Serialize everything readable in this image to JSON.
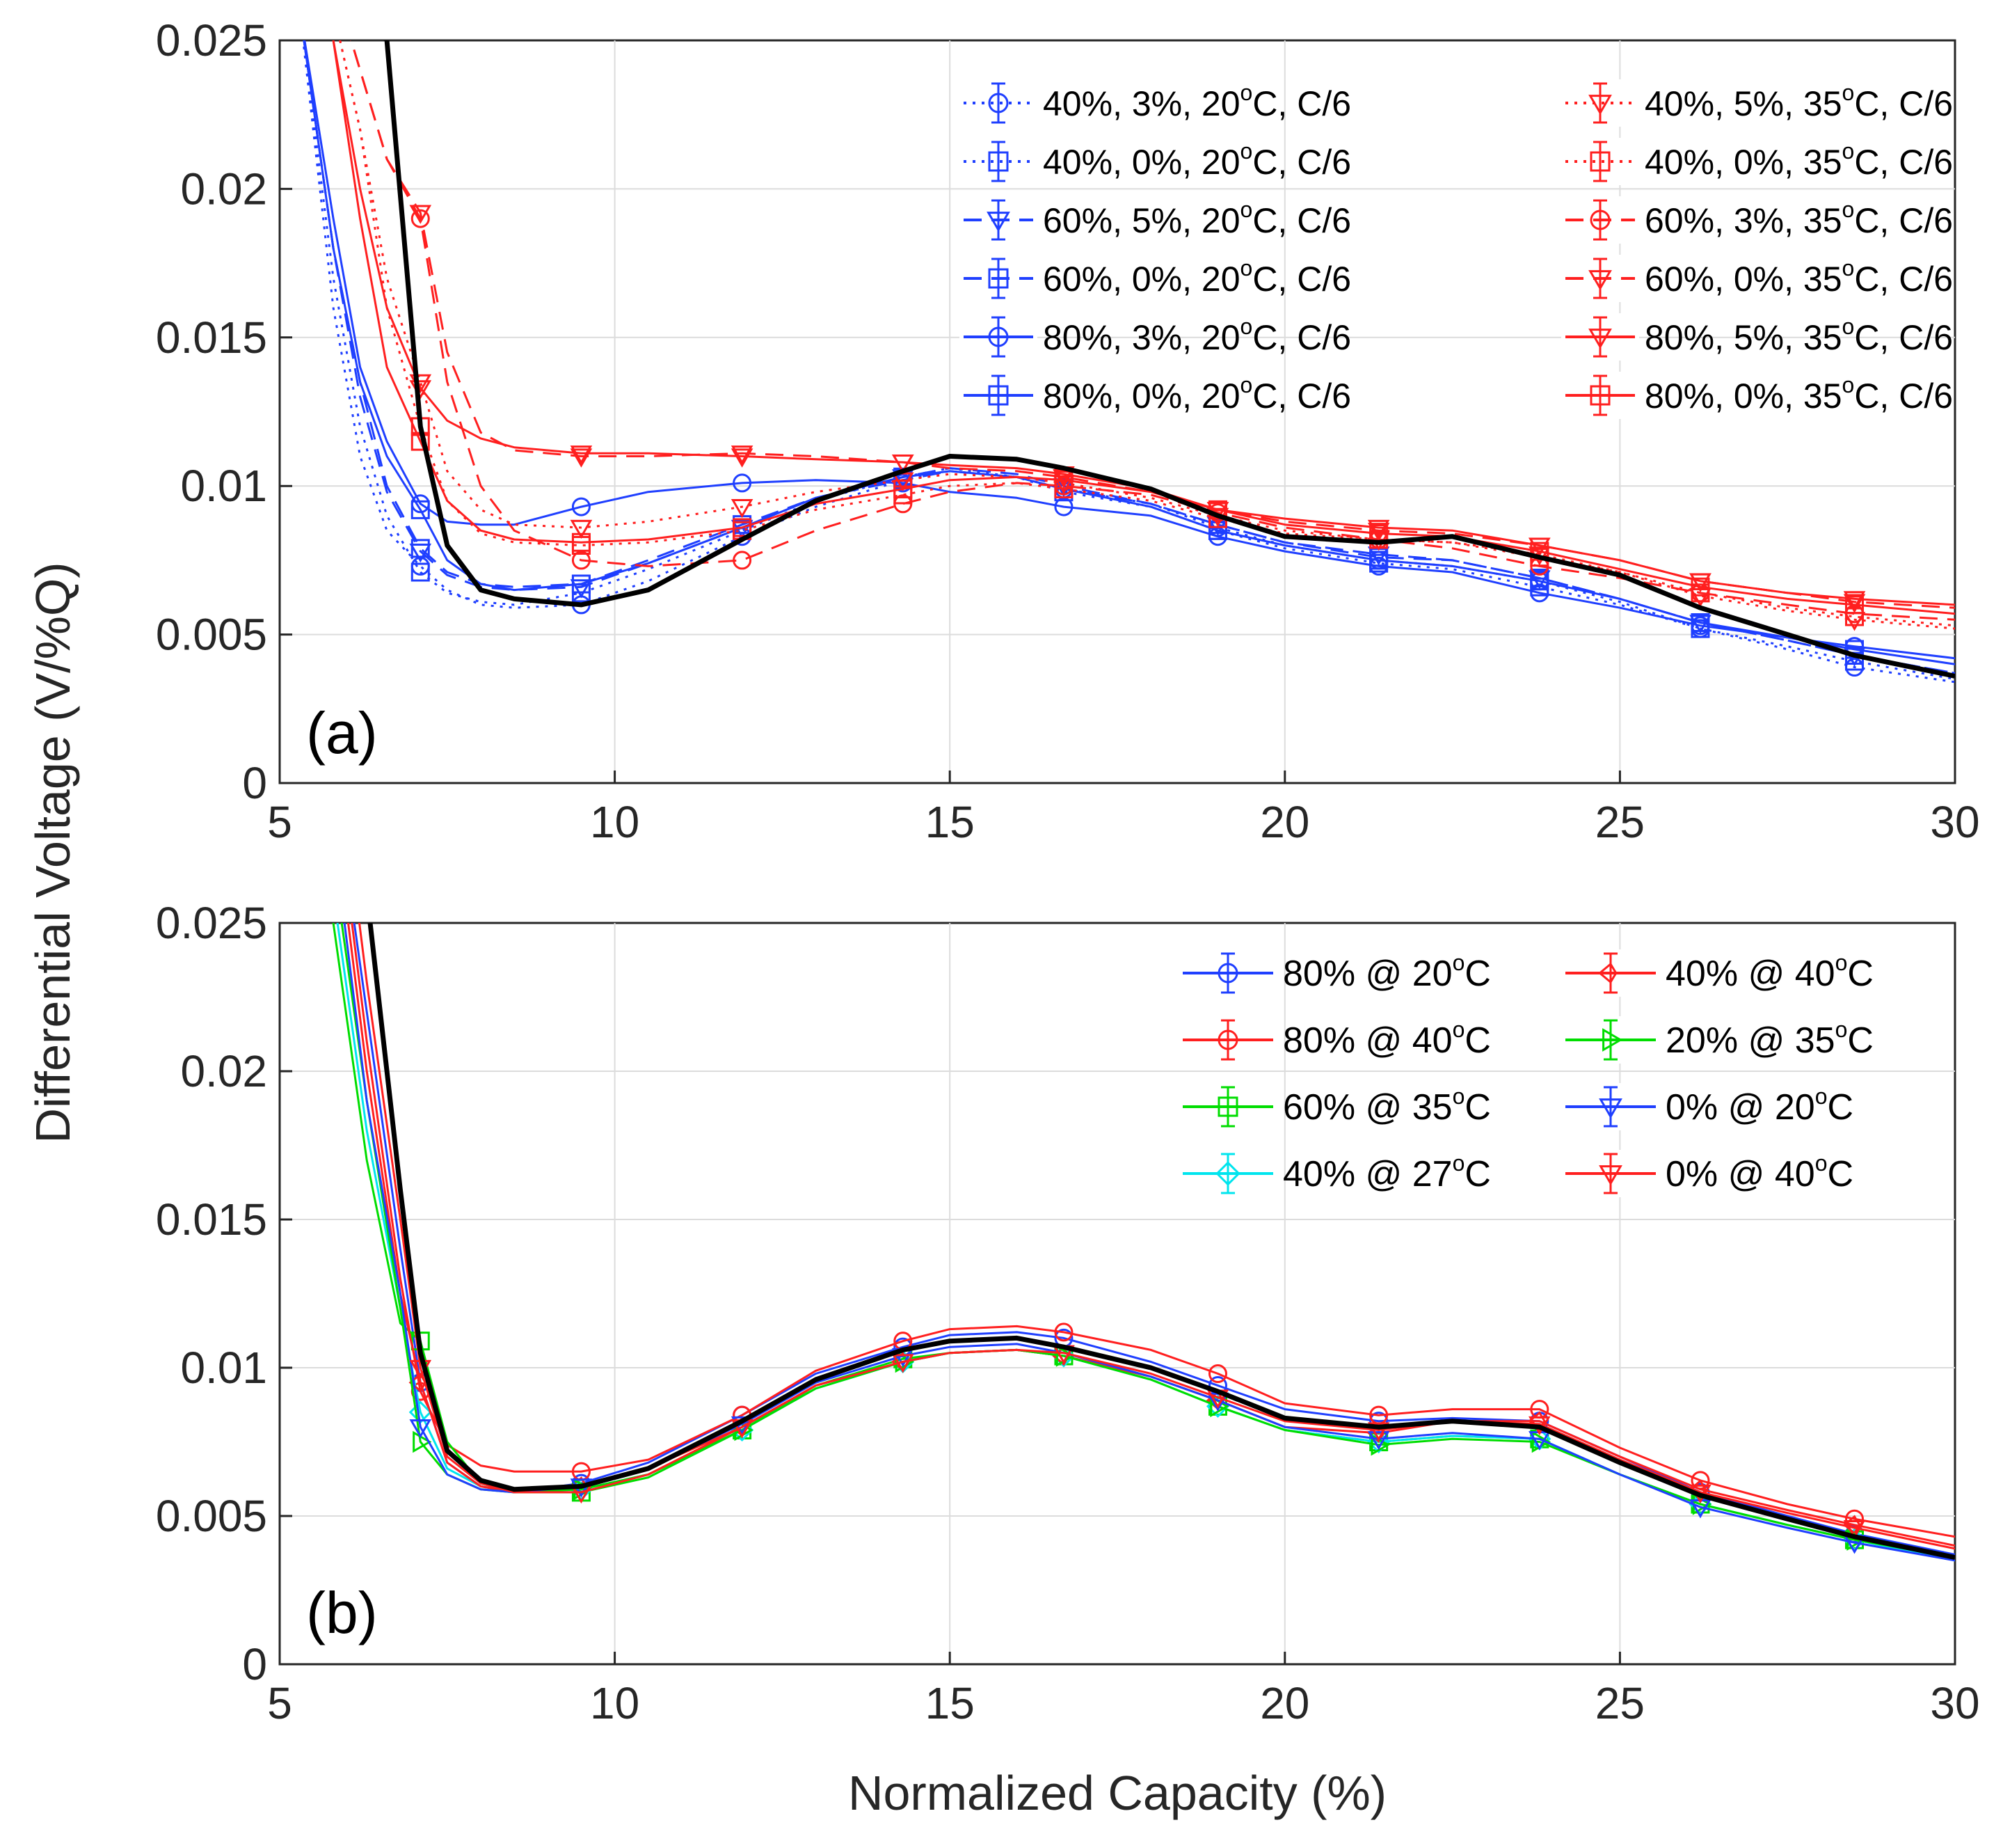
{
  "figure": {
    "ylabel": "Differential Voltage (V/%Q)",
    "xlabel": "Normalized Capacity (%)"
  },
  "chart_data": [
    {
      "type": "line",
      "panel_label": "(a)",
      "xlim": [
        5,
        30
      ],
      "ylim": [
        0,
        0.025
      ],
      "xticks": [
        "5",
        "10",
        "15",
        "20",
        "25",
        "30"
      ],
      "yticks": [
        "0",
        "0.005",
        "0.01",
        "0.015",
        "0.02",
        "0.025"
      ],
      "grid": true,
      "legend_position": "top-right",
      "x": [
        5.3,
        5.8,
        6.2,
        6.6,
        7.1,
        7.5,
        8.0,
        8.5,
        9.5,
        10.5,
        11.9,
        13.0,
        14.3,
        15.0,
        16.0,
        16.7,
        18.0,
        19.0,
        20.0,
        21.4,
        22.5,
        23.8,
        25.0,
        26.2,
        27.5,
        28.5,
        30.0
      ],
      "reference": {
        "name": "reference",
        "color": "#000000",
        "values": [
          0.034,
          0.03,
          0.026,
          0.025,
          0.012,
          0.008,
          0.0065,
          0.0062,
          0.006,
          0.0065,
          0.0082,
          0.0095,
          0.0105,
          0.011,
          0.0109,
          0.0106,
          0.0099,
          0.009,
          0.0083,
          0.0081,
          0.0083,
          0.0076,
          0.007,
          0.0059,
          0.005,
          0.0043,
          0.0036
        ]
      },
      "series": [
        {
          "name": "40%, 3%, 20",
          "suffix": "C, C/6",
          "color": "#1f3fff",
          "dash": "dot",
          "marker": "circle",
          "values": [
            0.026,
            0.016,
            0.011,
            0.0085,
            0.0073,
            0.0065,
            0.006,
            0.0059,
            0.006,
            0.0068,
            0.0083,
            0.0093,
            0.0102,
            0.0105,
            0.0103,
            0.0099,
            0.0094,
            0.0086,
            0.008,
            0.0075,
            0.0073,
            0.0068,
            0.0061,
            0.0052,
            0.0045,
            0.0039,
            0.0034
          ]
        },
        {
          "name": "40%, 0%, 20",
          "suffix": "C, C/6",
          "color": "#1f3fff",
          "dash": "dot",
          "marker": "square",
          "values": [
            0.026,
            0.017,
            0.012,
            0.009,
            0.0071,
            0.0064,
            0.0061,
            0.006,
            0.0064,
            0.0072,
            0.0085,
            0.0095,
            0.0103,
            0.0106,
            0.0103,
            0.0098,
            0.0093,
            0.0085,
            0.0079,
            0.0074,
            0.0072,
            0.0066,
            0.006,
            0.0052,
            0.0046,
            0.0041,
            0.0035
          ]
        },
        {
          "name": "60%, 5%, 20",
          "suffix": "C, C/6",
          "color": "#1f3fff",
          "dash": "dash",
          "marker": "triangle-down",
          "values": [
            0.026,
            0.018,
            0.013,
            0.0098,
            0.0078,
            0.007,
            0.0066,
            0.0065,
            0.0066,
            0.0074,
            0.0086,
            0.0096,
            0.0103,
            0.0106,
            0.0104,
            0.01,
            0.0094,
            0.0087,
            0.0081,
            0.0077,
            0.0075,
            0.0069,
            0.0062,
            0.0054,
            0.0048,
            0.0043,
            0.0037
          ]
        },
        {
          "name": "60%, 0%, 20",
          "suffix": "C, C/6",
          "color": "#1f3fff",
          "dash": "dash",
          "marker": "square",
          "values": [
            0.026,
            0.018,
            0.0135,
            0.01,
            0.0079,
            0.0071,
            0.0067,
            0.0066,
            0.0067,
            0.0075,
            0.0087,
            0.0096,
            0.0102,
            0.0105,
            0.0103,
            0.0099,
            0.0094,
            0.0087,
            0.0081,
            0.0076,
            0.0075,
            0.0069,
            0.0062,
            0.0054,
            0.0048,
            0.0043,
            0.0037
          ]
        },
        {
          "name": "80%, 3%, 20",
          "suffix": "C, C/6",
          "color": "#1f3fff",
          "dash": "solid",
          "marker": "circle",
          "values": [
            0.026,
            0.019,
            0.014,
            0.0115,
            0.0094,
            0.0088,
            0.0087,
            0.0087,
            0.0093,
            0.0098,
            0.0101,
            0.0102,
            0.0101,
            0.0098,
            0.0096,
            0.0093,
            0.009,
            0.0083,
            0.0078,
            0.0073,
            0.0071,
            0.0064,
            0.0059,
            0.0053,
            0.0049,
            0.0046,
            0.0042
          ]
        },
        {
          "name": "80%, 0%, 20",
          "suffix": "C, C/6",
          "color": "#1f3fff",
          "dash": "solid",
          "marker": "square",
          "values": [
            0.026,
            0.018,
            0.0135,
            0.011,
            0.0092,
            0.0075,
            0.0067,
            0.0065,
            0.0067,
            0.0074,
            0.0086,
            0.0096,
            0.0103,
            0.0105,
            0.0103,
            0.0099,
            0.0093,
            0.0085,
            0.008,
            0.0075,
            0.0073,
            0.0068,
            0.0062,
            0.0054,
            0.0049,
            0.0045,
            0.004
          ]
        },
        {
          "name": "40%, 5%, 35",
          "suffix": "C, C/6",
          "color": "#ff1f1f",
          "dash": "dot",
          "marker": "triangle-down",
          "values": [
            0.03,
            0.026,
            0.022,
            0.017,
            0.0135,
            0.0105,
            0.0092,
            0.0087,
            0.0086,
            0.0088,
            0.0093,
            0.0098,
            0.0102,
            0.0104,
            0.0103,
            0.0101,
            0.0096,
            0.009,
            0.0085,
            0.0082,
            0.0081,
            0.0077,
            0.0071,
            0.0063,
            0.0058,
            0.0055,
            0.0052
          ]
        },
        {
          "name": "40%, 0%, 35",
          "suffix": "C, C/6",
          "color": "#ff1f1f",
          "dash": "dot",
          "marker": "square",
          "values": [
            0.03,
            0.026,
            0.022,
            0.016,
            0.012,
            0.0095,
            0.0084,
            0.0081,
            0.008,
            0.0081,
            0.0085,
            0.0092,
            0.0097,
            0.01,
            0.0101,
            0.0099,
            0.0095,
            0.0089,
            0.0084,
            0.0082,
            0.0081,
            0.0076,
            0.0071,
            0.0064,
            0.0059,
            0.0056,
            0.0053
          ]
        },
        {
          "name": "60%, 3%, 35",
          "suffix": "C, C/6",
          "color": "#ff1f1f",
          "dash": "dash",
          "marker": "circle",
          "values": [
            0.03,
            0.027,
            0.024,
            0.021,
            0.019,
            0.0135,
            0.01,
            0.0085,
            0.0075,
            0.0073,
            0.0075,
            0.0085,
            0.0094,
            0.0098,
            0.0101,
            0.01,
            0.0097,
            0.0091,
            0.0086,
            0.0082,
            0.0079,
            0.0073,
            0.0069,
            0.0064,
            0.006,
            0.0057,
            0.0055
          ]
        },
        {
          "name": "60%, 0%, 35",
          "suffix": "C, C/6",
          "color": "#ff1f1f",
          "dash": "dash",
          "marker": "triangle-down",
          "values": [
            0.03,
            0.027,
            0.024,
            0.021,
            0.0192,
            0.0145,
            0.0118,
            0.0112,
            0.011,
            0.011,
            0.0111,
            0.011,
            0.0108,
            0.0106,
            0.0105,
            0.0103,
            0.0098,
            0.0092,
            0.0088,
            0.0085,
            0.0084,
            0.008,
            0.0075,
            0.0068,
            0.0064,
            0.0061,
            0.0059
          ]
        },
        {
          "name": "80%, 5%, 35",
          "suffix": "C, C/6",
          "color": "#ff1f1f",
          "dash": "solid",
          "marker": "triangle-down",
          "values": [
            0.03,
            0.025,
            0.02,
            0.016,
            0.0133,
            0.0122,
            0.0116,
            0.0113,
            0.0111,
            0.0111,
            0.011,
            0.0109,
            0.0108,
            0.0107,
            0.0106,
            0.0104,
            0.0099,
            0.0092,
            0.0089,
            0.0086,
            0.0085,
            0.008,
            0.0075,
            0.0068,
            0.0064,
            0.0062,
            0.006
          ]
        },
        {
          "name": "80%, 0%, 35",
          "suffix": "C, C/6",
          "color": "#ff1f1f",
          "dash": "solid",
          "marker": "square",
          "values": [
            0.03,
            0.025,
            0.019,
            0.014,
            0.0115,
            0.0095,
            0.0085,
            0.0082,
            0.0081,
            0.0082,
            0.0086,
            0.0094,
            0.0099,
            0.0102,
            0.0103,
            0.0102,
            0.0098,
            0.0092,
            0.0087,
            0.0084,
            0.0083,
            0.0078,
            0.0072,
            0.0066,
            0.0062,
            0.006,
            0.0057
          ]
        }
      ]
    },
    {
      "type": "line",
      "panel_label": "(b)",
      "xlim": [
        5,
        30
      ],
      "ylim": [
        0,
        0.025
      ],
      "xticks": [
        "5",
        "10",
        "15",
        "20",
        "25",
        "30"
      ],
      "yticks": [
        "0",
        "0.005",
        "0.01",
        "0.015",
        "0.02",
        "0.025"
      ],
      "grid": true,
      "legend_position": "top-right",
      "x": [
        5.8,
        6.3,
        6.8,
        7.1,
        7.5,
        8.0,
        8.5,
        9.5,
        10.5,
        11.9,
        13.0,
        14.3,
        15.0,
        16.0,
        16.7,
        18.0,
        19.0,
        20.0,
        21.4,
        22.5,
        23.8,
        25.0,
        26.2,
        27.5,
        28.5,
        30.0
      ],
      "reference": {
        "name": "reference",
        "color": "#000000",
        "values": [
          0.034,
          0.026,
          0.016,
          0.0105,
          0.0072,
          0.0062,
          0.0059,
          0.006,
          0.0066,
          0.0082,
          0.0096,
          0.0106,
          0.0109,
          0.011,
          0.0107,
          0.01,
          0.0092,
          0.0083,
          0.008,
          0.0082,
          0.008,
          0.0068,
          0.0057,
          0.0049,
          0.0043,
          0.0036
        ]
      },
      "series": [
        {
          "name": "80% @ 20",
          "suffix": "C",
          "color": "#1f3fff",
          "marker": "circle",
          "values": [
            0.03,
            0.022,
            0.014,
            0.0095,
            0.0068,
            0.006,
            0.0058,
            0.0061,
            0.0068,
            0.0084,
            0.0098,
            0.0107,
            0.0111,
            0.0112,
            0.011,
            0.0102,
            0.0094,
            0.0086,
            0.0082,
            0.0083,
            0.0082,
            0.007,
            0.0058,
            0.005,
            0.0044,
            0.0037
          ]
        },
        {
          "name": "80% @ 40",
          "suffix": "C",
          "color": "#ff1f1f",
          "marker": "circle",
          "values": [
            0.03,
            0.021,
            0.013,
            0.0092,
            0.0074,
            0.0067,
            0.0065,
            0.0065,
            0.0069,
            0.0084,
            0.0099,
            0.0109,
            0.0113,
            0.0114,
            0.0112,
            0.0106,
            0.0098,
            0.0088,
            0.0084,
            0.0086,
            0.0086,
            0.0073,
            0.0062,
            0.0054,
            0.0049,
            0.0043
          ]
        },
        {
          "name": "60% @ 35",
          "suffix": "C",
          "color": "#00dd00",
          "marker": "square",
          "values": [
            0.025,
            0.017,
            0.0115,
            0.0109,
            0.0075,
            0.0061,
            0.0058,
            0.0058,
            0.0063,
            0.0079,
            0.0094,
            0.0103,
            0.0105,
            0.0106,
            0.0104,
            0.0096,
            0.0087,
            0.0079,
            0.0075,
            0.0077,
            0.0076,
            0.0064,
            0.0054,
            0.0047,
            0.0042,
            0.0036
          ]
        },
        {
          "name": "40% @ 27",
          "suffix": "C",
          "color": "#00e5ee",
          "marker": "diamond",
          "values": [
            0.026,
            0.018,
            0.012,
            0.0085,
            0.0066,
            0.006,
            0.0058,
            0.0059,
            0.0064,
            0.0079,
            0.0093,
            0.0102,
            0.0105,
            0.0106,
            0.0104,
            0.0096,
            0.0087,
            0.0079,
            0.0075,
            0.0077,
            0.0076,
            0.0064,
            0.0054,
            0.0047,
            0.0042,
            0.0035
          ]
        },
        {
          "name": "40% @ 40",
          "suffix": "C",
          "color": "#ff1f1f",
          "marker": "diamond-left",
          "values": [
            0.029,
            0.02,
            0.0125,
            0.0095,
            0.0068,
            0.006,
            0.0058,
            0.006,
            0.0066,
            0.008,
            0.0094,
            0.0102,
            0.0105,
            0.0106,
            0.0104,
            0.0097,
            0.0089,
            0.008,
            0.0078,
            0.0082,
            0.0082,
            0.007,
            0.0059,
            0.0052,
            0.0047,
            0.004
          ]
        },
        {
          "name": "20% @ 35",
          "suffix": "C",
          "color": "#00dd00",
          "marker": "triangle-right",
          "values": [
            0.027,
            0.019,
            0.012,
            0.0075,
            0.0064,
            0.0059,
            0.0058,
            0.0059,
            0.0064,
            0.0079,
            0.0093,
            0.0102,
            0.0105,
            0.0106,
            0.0104,
            0.0096,
            0.0087,
            0.0079,
            0.0074,
            0.0076,
            0.0075,
            0.0064,
            0.0054,
            0.0047,
            0.0042,
            0.0036
          ]
        },
        {
          "name": "0% @ 20",
          "suffix": "C",
          "color": "#1f3fff",
          "marker": "triangle-down",
          "values": [
            0.028,
            0.019,
            0.0125,
            0.008,
            0.0064,
            0.0059,
            0.0058,
            0.006,
            0.0066,
            0.0081,
            0.0095,
            0.0104,
            0.0107,
            0.0108,
            0.0105,
            0.0097,
            0.0089,
            0.008,
            0.0076,
            0.0078,
            0.0076,
            0.0064,
            0.0053,
            0.0046,
            0.0041,
            0.0035
          ]
        },
        {
          "name": "0% @ 40",
          "suffix": "C",
          "color": "#ff1f1f",
          "marker": "triangle-down",
          "values": [
            0.032,
            0.023,
            0.015,
            0.01,
            0.007,
            0.0061,
            0.0058,
            0.0058,
            0.0064,
            0.008,
            0.0094,
            0.0102,
            0.0105,
            0.0106,
            0.0105,
            0.0098,
            0.009,
            0.0082,
            0.0079,
            0.0082,
            0.0081,
            0.0069,
            0.0058,
            0.0051,
            0.0046,
            0.0039
          ]
        }
      ]
    }
  ]
}
